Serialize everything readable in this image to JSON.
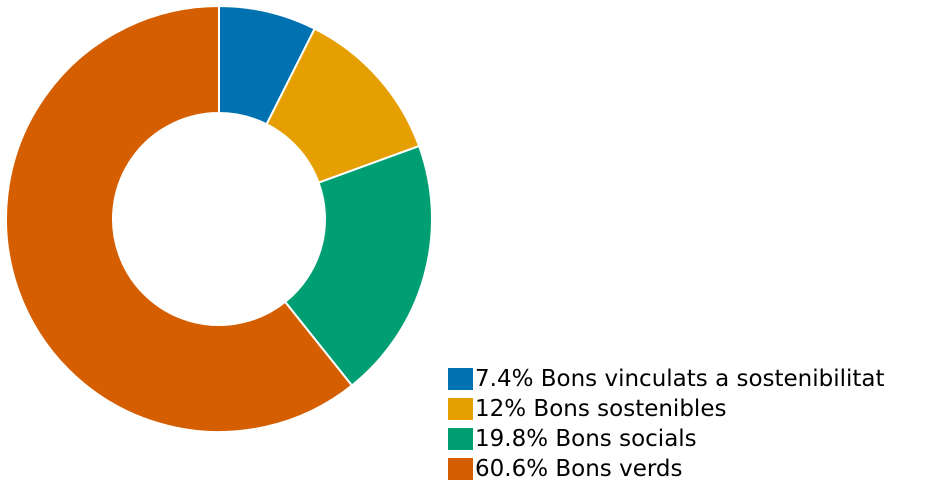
{
  "chart_data": {
    "type": "pie",
    "variant": "donut",
    "title": "",
    "start_angle": "12 o'clock",
    "direction": "clockwise",
    "legend_position": "bottom-right",
    "slices": [
      {
        "label": "Bons vinculats a sostenibilitat",
        "value": 7.4,
        "color": "#0072b2"
      },
      {
        "label": "Bons sostenibles",
        "value": 12,
        "color": "#e69f00"
      },
      {
        "label": "Bons socials",
        "value": 19.8,
        "color": "#009e73"
      },
      {
        "label": "Bons verds",
        "value": 60.6,
        "color": "#d55e00"
      }
    ],
    "legend": [
      "7.4% Bons vinculats a sostenibilitat",
      "12% Bons sostenibles",
      "19.8% Bons socials",
      "60.6% Bons verds"
    ]
  }
}
